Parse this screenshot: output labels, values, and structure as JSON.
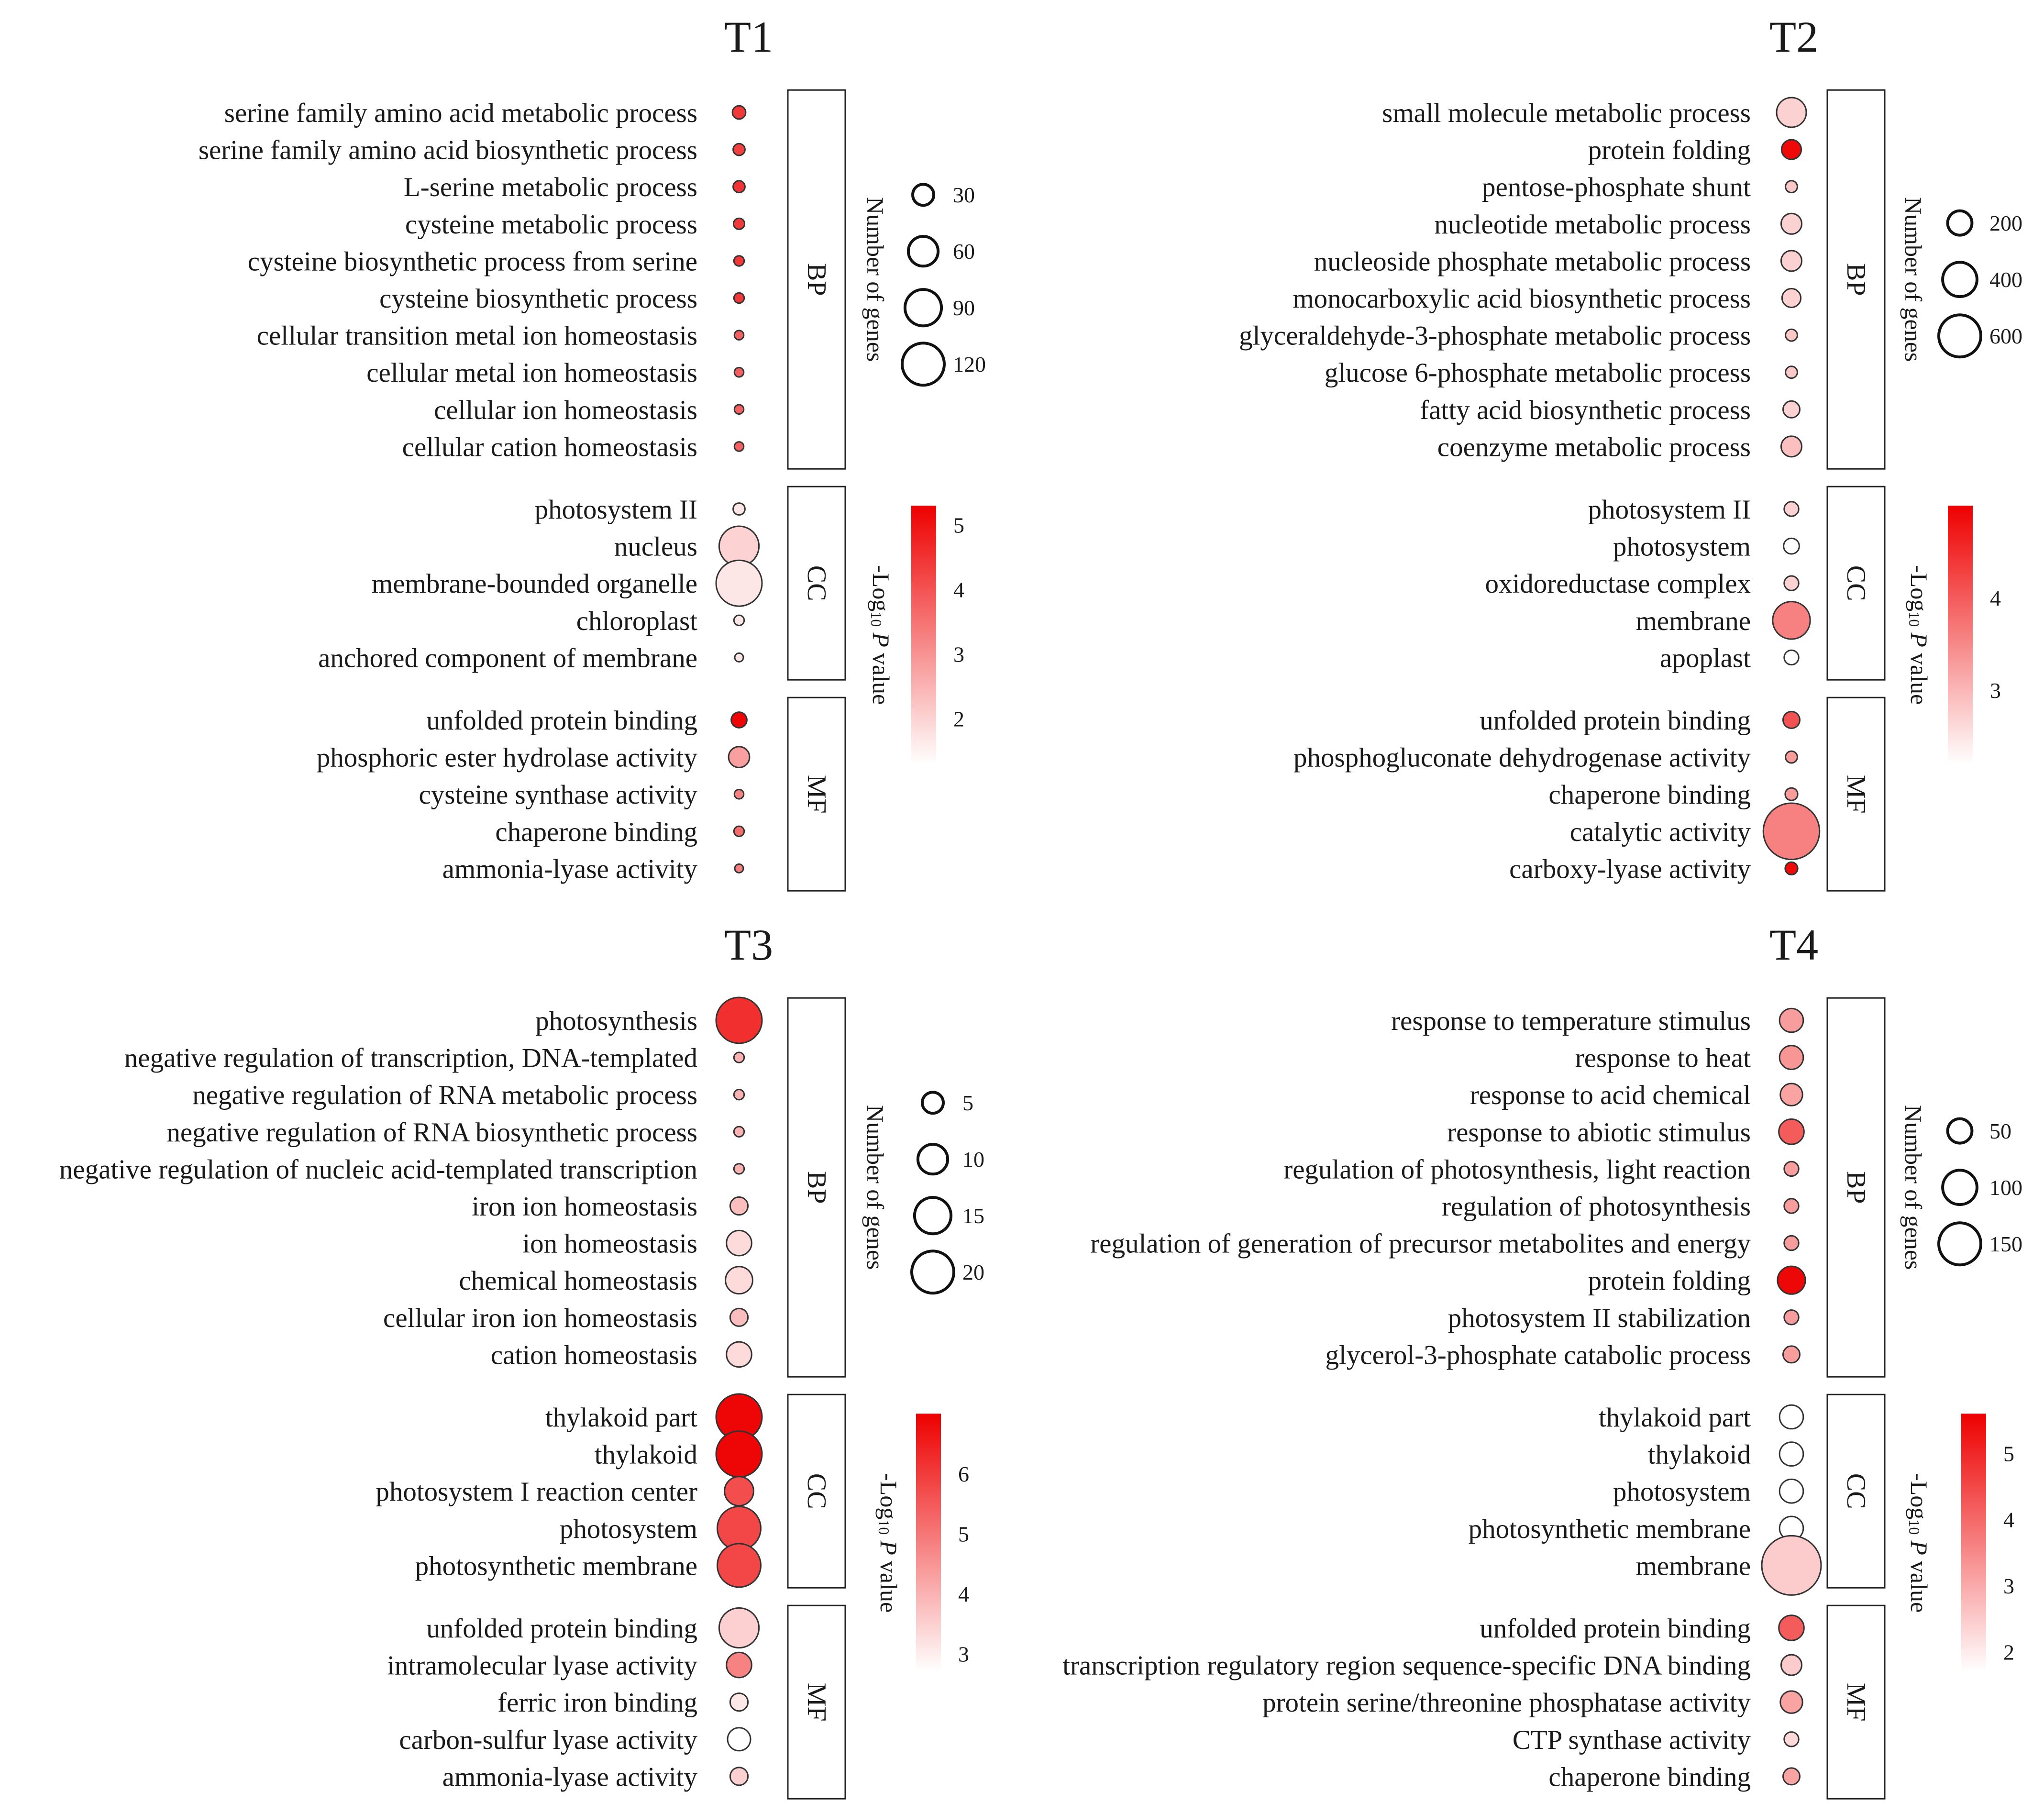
{
  "chart_data": [
    {
      "type": "scatter",
      "title": "T1",
      "categories": [
        {
          "name": "BP",
          "terms": [
            {
              "label": "serine family amino acid metabolic process",
              "genes": 10,
              "neg_log10_p": 4.4
            },
            {
              "label": "serine family amino acid biosynthetic process",
              "genes": 8,
              "neg_log10_p": 4.3
            },
            {
              "label": "L-serine metabolic process",
              "genes": 8,
              "neg_log10_p": 4.5
            },
            {
              "label": "cysteine metabolic process",
              "genes": 7,
              "neg_log10_p": 4.4
            },
            {
              "label": "cysteine biosynthetic process from serine",
              "genes": 6,
              "neg_log10_p": 4.4
            },
            {
              "label": "cysteine biosynthetic process",
              "genes": 6,
              "neg_log10_p": 4.4
            },
            {
              "label": "cellular transition metal ion homeostasis",
              "genes": 5,
              "neg_log10_p": 3.8
            },
            {
              "label": "cellular metal ion homeostasis",
              "genes": 5,
              "neg_log10_p": 3.8
            },
            {
              "label": "cellular ion homeostasis",
              "genes": 5,
              "neg_log10_p": 3.8
            },
            {
              "label": "cellular cation homeostasis",
              "genes": 5,
              "neg_log10_p": 3.8
            }
          ]
        },
        {
          "name": "CC",
          "terms": [
            {
              "label": "photosystem II",
              "genes": 8,
              "neg_log10_p": 1.7
            },
            {
              "label": "nucleus",
              "genes": 90,
              "neg_log10_p": 2.0
            },
            {
              "label": "membrane-bounded organelle",
              "genes": 120,
              "neg_log10_p": 1.7
            },
            {
              "label": "chloroplast",
              "genes": 6,
              "neg_log10_p": 1.7
            },
            {
              "label": "anchored component of membrane",
              "genes": 3,
              "neg_log10_p": 1.7
            }
          ]
        },
        {
          "name": "MF",
          "terms": [
            {
              "label": "unfolded protein binding",
              "genes": 14,
              "neg_log10_p": 5.2
            },
            {
              "label": "phosphoric ester hydrolase activity",
              "genes": 25,
              "neg_log10_p": 2.8
            },
            {
              "label": "cysteine synthase activity",
              "genes": 5,
              "neg_log10_p": 3.3
            },
            {
              "label": "chaperone binding",
              "genes": 6,
              "neg_log10_p": 3.6
            },
            {
              "label": "ammonia-lyase activity",
              "genes": 3,
              "neg_log10_p": 3.3
            }
          ]
        }
      ],
      "size_legend": {
        "title": "Number of genes",
        "values": [
          30,
          60,
          90,
          120
        ]
      },
      "color_legend": {
        "title_prefix": "-Log",
        "title_sub": "10",
        "title_p": "P",
        "title_suffix": "value",
        "ticks": [
          5,
          4,
          3,
          2
        ],
        "range": [
          1.3,
          5.3
        ]
      }
    },
    {
      "type": "scatter",
      "title": "T2",
      "categories": [
        {
          "name": "BP",
          "terms": [
            {
              "label": "small molecule metabolic process",
              "genes": 250,
              "neg_log10_p": 2.7
            },
            {
              "label": "protein folding",
              "genes": 110,
              "neg_log10_p": 4.9
            },
            {
              "label": "pentose-phosphate shunt",
              "genes": 40,
              "neg_log10_p": 2.8
            },
            {
              "label": "nucleotide metabolic process",
              "genes": 120,
              "neg_log10_p": 2.7
            },
            {
              "label": "nucleoside phosphate metabolic process",
              "genes": 120,
              "neg_log10_p": 2.7
            },
            {
              "label": "monocarboxylic acid biosynthetic process",
              "genes": 100,
              "neg_log10_p": 2.7
            },
            {
              "label": "glyceraldehyde-3-phosphate metabolic process",
              "genes": 40,
              "neg_log10_p": 2.8
            },
            {
              "label": "glucose 6-phosphate metabolic process",
              "genes": 40,
              "neg_log10_p": 2.8
            },
            {
              "label": "fatty acid biosynthetic process",
              "genes": 80,
              "neg_log10_p": 2.7
            },
            {
              "label": "coenzyme metabolic process",
              "genes": 120,
              "neg_log10_p": 2.9
            }
          ]
        },
        {
          "name": "CC",
          "terms": [
            {
              "label": "photosystem II",
              "genes": 60,
              "neg_log10_p": 2.7
            },
            {
              "label": "photosystem",
              "genes": 70,
              "neg_log10_p": 2.2
            },
            {
              "label": "oxidoreductase complex",
              "genes": 60,
              "neg_log10_p": 2.7
            },
            {
              "label": "membrane",
              "genes": 400,
              "neg_log10_p": 3.6
            },
            {
              "label": "apoplast",
              "genes": 60,
              "neg_log10_p": 2.2
            }
          ]
        },
        {
          "name": "MF",
          "terms": [
            {
              "label": "unfolded protein binding",
              "genes": 80,
              "neg_log10_p": 4.1
            },
            {
              "label": "phosphogluconate dehydrogenase activity",
              "genes": 40,
              "neg_log10_p": 3.3
            },
            {
              "label": "chaperone binding",
              "genes": 45,
              "neg_log10_p": 3.3
            },
            {
              "label": "catalytic activity",
              "genes": 900,
              "neg_log10_p": 3.6
            },
            {
              "label": "carboxy-lyase activity",
              "genes": 45,
              "neg_log10_p": 4.9
            }
          ]
        }
      ],
      "size_legend": {
        "title": "Number of genes",
        "values": [
          200,
          400,
          600
        ]
      },
      "color_legend": {
        "title_prefix": "-Log",
        "title_sub": "10",
        "title_p": "P",
        "title_suffix": "value",
        "ticks": [
          4,
          3
        ],
        "range": [
          2.2,
          5.0
        ]
      }
    },
    {
      "type": "scatter",
      "title": "T3",
      "categories": [
        {
          "name": "BP",
          "terms": [
            {
              "label": "photosynthesis",
              "genes": 20,
              "neg_log10_p": 6.2
            },
            {
              "label": "negative regulation of transcription, DNA-templated",
              "genes": 1,
              "neg_log10_p": 4.0
            },
            {
              "label": "negative regulation of RNA metabolic process",
              "genes": 1,
              "neg_log10_p": 4.0
            },
            {
              "label": "negative regulation of RNA biosynthetic process",
              "genes": 1,
              "neg_log10_p": 4.0
            },
            {
              "label": "negative regulation of nucleic acid-templated transcription",
              "genes": 1,
              "neg_log10_p": 4.0
            },
            {
              "label": "iron ion homeostasis",
              "genes": 3,
              "neg_log10_p": 3.8
            },
            {
              "label": "ion homeostasis",
              "genes": 6,
              "neg_log10_p": 3.3
            },
            {
              "label": "chemical homeostasis",
              "genes": 7,
              "neg_log10_p": 3.3
            },
            {
              "label": "cellular iron ion homeostasis",
              "genes": 3,
              "neg_log10_p": 3.8
            },
            {
              "label": "cation homeostasis",
              "genes": 6,
              "neg_log10_p": 3.3
            }
          ]
        },
        {
          "name": "CC",
          "terms": [
            {
              "label": "thylakoid part",
              "genes": 20,
              "neg_log10_p": 6.9
            },
            {
              "label": "thylakoid",
              "genes": 20,
              "neg_log10_p": 6.9
            },
            {
              "label": "photosystem I reaction center",
              "genes": 8,
              "neg_log10_p": 5.7
            },
            {
              "label": "photosystem",
              "genes": 18,
              "neg_log10_p": 5.8
            },
            {
              "label": "photosynthetic membrane",
              "genes": 18,
              "neg_log10_p": 5.8
            }
          ]
        },
        {
          "name": "MF",
          "terms": [
            {
              "label": "unfolded protein binding",
              "genes": 15,
              "neg_log10_p": 3.5
            },
            {
              "label": "intramolecular lyase activity",
              "genes": 6,
              "neg_log10_p": 4.8
            },
            {
              "label": "ferric iron binding",
              "genes": 3,
              "neg_log10_p": 3.1
            },
            {
              "label": "carbon-sulfur lyase activity",
              "genes": 5,
              "neg_log10_p": 2.7
            },
            {
              "label": "ammonia-lyase activity",
              "genes": 3,
              "neg_log10_p": 3.5
            }
          ]
        }
      ],
      "size_legend": {
        "title": "Number of genes",
        "values": [
          5,
          10,
          15,
          20
        ]
      },
      "color_legend": {
        "title_prefix": "-Log",
        "title_sub": "10",
        "title_p": "P",
        "title_suffix": "value",
        "ticks": [
          6,
          5,
          4,
          3
        ],
        "range": [
          2.7,
          7.0
        ]
      }
    },
    {
      "type": "scatter",
      "title": "T4",
      "categories": [
        {
          "name": "BP",
          "terms": [
            {
              "label": "response to temperature stimulus",
              "genes": 40,
              "neg_log10_p": 3.2
            },
            {
              "label": "response to heat",
              "genes": 40,
              "neg_log10_p": 3.3
            },
            {
              "label": "response to acid chemical",
              "genes": 35,
              "neg_log10_p": 3.1
            },
            {
              "label": "response to abiotic stimulus",
              "genes": 45,
              "neg_log10_p": 4.2
            },
            {
              "label": "regulation of photosynthesis, light reaction",
              "genes": 15,
              "neg_log10_p": 3.2
            },
            {
              "label": "regulation of photosynthesis",
              "genes": 15,
              "neg_log10_p": 3.2
            },
            {
              "label": "regulation of generation of precursor metabolites and energy",
              "genes": 15,
              "neg_log10_p": 3.2
            },
            {
              "label": "protein folding",
              "genes": 55,
              "neg_log10_p": 5.5
            },
            {
              "label": "photosystem II stabilization",
              "genes": 15,
              "neg_log10_p": 3.2
            },
            {
              "label": "glycerol-3-phosphate catabolic process",
              "genes": 20,
              "neg_log10_p": 3.2
            }
          ]
        },
        {
          "name": "CC",
          "terms": [
            {
              "label": "thylakoid part",
              "genes": 40,
              "neg_log10_p": 1.7
            },
            {
              "label": "thylakoid",
              "genes": 40,
              "neg_log10_p": 1.7
            },
            {
              "label": "photosystem",
              "genes": 40,
              "neg_log10_p": 1.7
            },
            {
              "label": "photosynthetic membrane",
              "genes": 40,
              "neg_log10_p": 1.7
            },
            {
              "label": "membrane",
              "genes": 250,
              "neg_log10_p": 2.5
            }
          ]
        },
        {
          "name": "MF",
          "terms": [
            {
              "label": "unfolded protein binding",
              "genes": 45,
              "neg_log10_p": 4.2
            },
            {
              "label": "transcription regulatory region sequence-specific DNA binding",
              "genes": 30,
              "neg_log10_p": 2.5
            },
            {
              "label": "protein serine/threonine phosphatase activity",
              "genes": 35,
              "neg_log10_p": 3.1
            },
            {
              "label": "CTP synthase activity",
              "genes": 15,
              "neg_log10_p": 2.3
            },
            {
              "label": "chaperone binding",
              "genes": 20,
              "neg_log10_p": 3.1
            }
          ]
        }
      ],
      "size_legend": {
        "title": "Number of genes",
        "values": [
          50,
          100,
          150
        ]
      },
      "color_legend": {
        "title_prefix": "-Log",
        "title_sub": "10",
        "title_p": "P",
        "title_suffix": "value",
        "ticks": [
          5,
          4,
          3,
          2
        ],
        "range": [
          1.7,
          5.6
        ]
      }
    }
  ],
  "colors": {
    "low": "#ffffff",
    "high": "#ee0000",
    "stroke": "#333333"
  }
}
